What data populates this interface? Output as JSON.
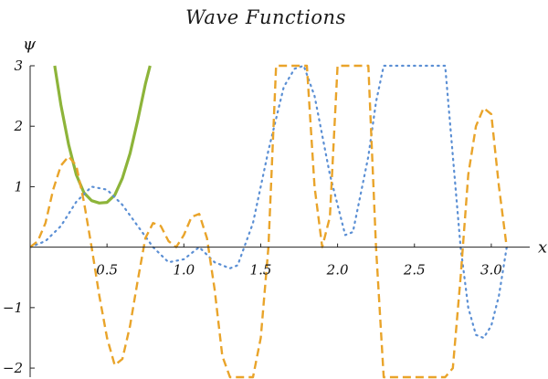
{
  "chart_data": {
    "type": "line",
    "title": "Wave Functions",
    "xlabel": "x",
    "ylabel": "ψ",
    "xlim": [
      0,
      3.25
    ],
    "ylim": [
      -2.15,
      3.0
    ],
    "xticks": [
      0.5,
      1.0,
      1.5,
      2.0,
      2.5,
      3.0
    ],
    "xtick_labels": [
      "0.5",
      "1.0",
      "1.5",
      "2.0",
      "2.5",
      "3.0"
    ],
    "yticks": [
      -2,
      -1,
      1,
      2,
      3
    ],
    "ytick_labels": [
      "−2",
      "−1",
      "1",
      "2",
      "3"
    ],
    "grid": false,
    "series": [
      {
        "style": "solid",
        "color": "#8db43a",
        "x": [
          0.16,
          0.2,
          0.25,
          0.3,
          0.35,
          0.4,
          0.45,
          0.5,
          0.55,
          0.6,
          0.65,
          0.7,
          0.75,
          0.78
        ],
        "y": [
          3.0,
          2.35,
          1.7,
          1.2,
          0.9,
          0.77,
          0.73,
          0.74,
          0.86,
          1.14,
          1.55,
          2.1,
          2.7,
          3.0
        ]
      },
      {
        "style": "dotted",
        "color": "#5b8fd4",
        "x": [
          0.0,
          0.1,
          0.2,
          0.3,
          0.4,
          0.5,
          0.6,
          0.7,
          0.8,
          0.9,
          1.0,
          1.1,
          1.2,
          1.3,
          1.35,
          1.45,
          1.55,
          1.65,
          1.72,
          1.78,
          1.85,
          1.95,
          2.05,
          2.1,
          2.2,
          2.25,
          2.3,
          2.35,
          2.42,
          2.5,
          2.6,
          2.7,
          2.8,
          2.85,
          2.9,
          2.95,
          3.0,
          3.05,
          3.1
        ],
        "y": [
          0.0,
          0.1,
          0.35,
          0.75,
          1.0,
          0.95,
          0.7,
          0.35,
          0.0,
          -0.25,
          -0.2,
          0.0,
          -0.25,
          -0.35,
          -0.3,
          0.4,
          1.6,
          2.65,
          2.95,
          3.0,
          2.5,
          1.2,
          0.2,
          0.25,
          1.5,
          2.4,
          3.0,
          3.0,
          3.0,
          3.0,
          3.0,
          3.0,
          0.0,
          -1.0,
          -1.45,
          -1.5,
          -1.3,
          -0.8,
          0.0
        ]
      },
      {
        "style": "dashed",
        "color": "#e9a42a",
        "x": [
          0.0,
          0.05,
          0.1,
          0.15,
          0.2,
          0.25,
          0.3,
          0.35,
          0.4,
          0.45,
          0.5,
          0.55,
          0.6,
          0.65,
          0.7,
          0.75,
          0.8,
          0.85,
          0.9,
          0.95,
          1.0,
          1.05,
          1.1,
          1.15,
          1.2,
          1.25,
          1.3,
          1.35,
          1.4,
          1.45,
          1.5,
          1.55,
          1.6,
          1.65,
          1.7,
          1.75,
          1.8,
          1.85,
          1.9,
          1.95,
          2.0,
          2.05,
          2.1,
          2.15,
          2.2,
          2.25,
          2.3,
          2.35,
          2.4,
          2.45,
          2.5,
          2.55,
          2.6,
          2.65,
          2.7,
          2.75,
          2.8,
          2.85,
          2.9,
          2.95,
          3.0,
          3.05,
          3.1
        ],
        "y": [
          0.0,
          0.1,
          0.4,
          0.95,
          1.35,
          1.5,
          1.35,
          0.75,
          0.0,
          -0.8,
          -1.5,
          -1.95,
          -1.85,
          -1.3,
          -0.55,
          0.15,
          0.4,
          0.35,
          0.1,
          0.0,
          0.2,
          0.5,
          0.55,
          0.15,
          -0.7,
          -1.8,
          -2.15,
          -2.15,
          -2.15,
          -2.15,
          -1.5,
          0.0,
          3.0,
          3.0,
          3.0,
          3.0,
          3.0,
          1.0,
          0.0,
          0.5,
          3.0,
          3.0,
          3.0,
          3.0,
          3.0,
          0.0,
          -2.15,
          -2.15,
          -2.15,
          -2.15,
          -2.15,
          -2.15,
          -2.15,
          -2.15,
          -2.15,
          -2.0,
          -0.5,
          1.2,
          2.0,
          2.3,
          2.2,
          1.0,
          0.0
        ]
      }
    ]
  }
}
